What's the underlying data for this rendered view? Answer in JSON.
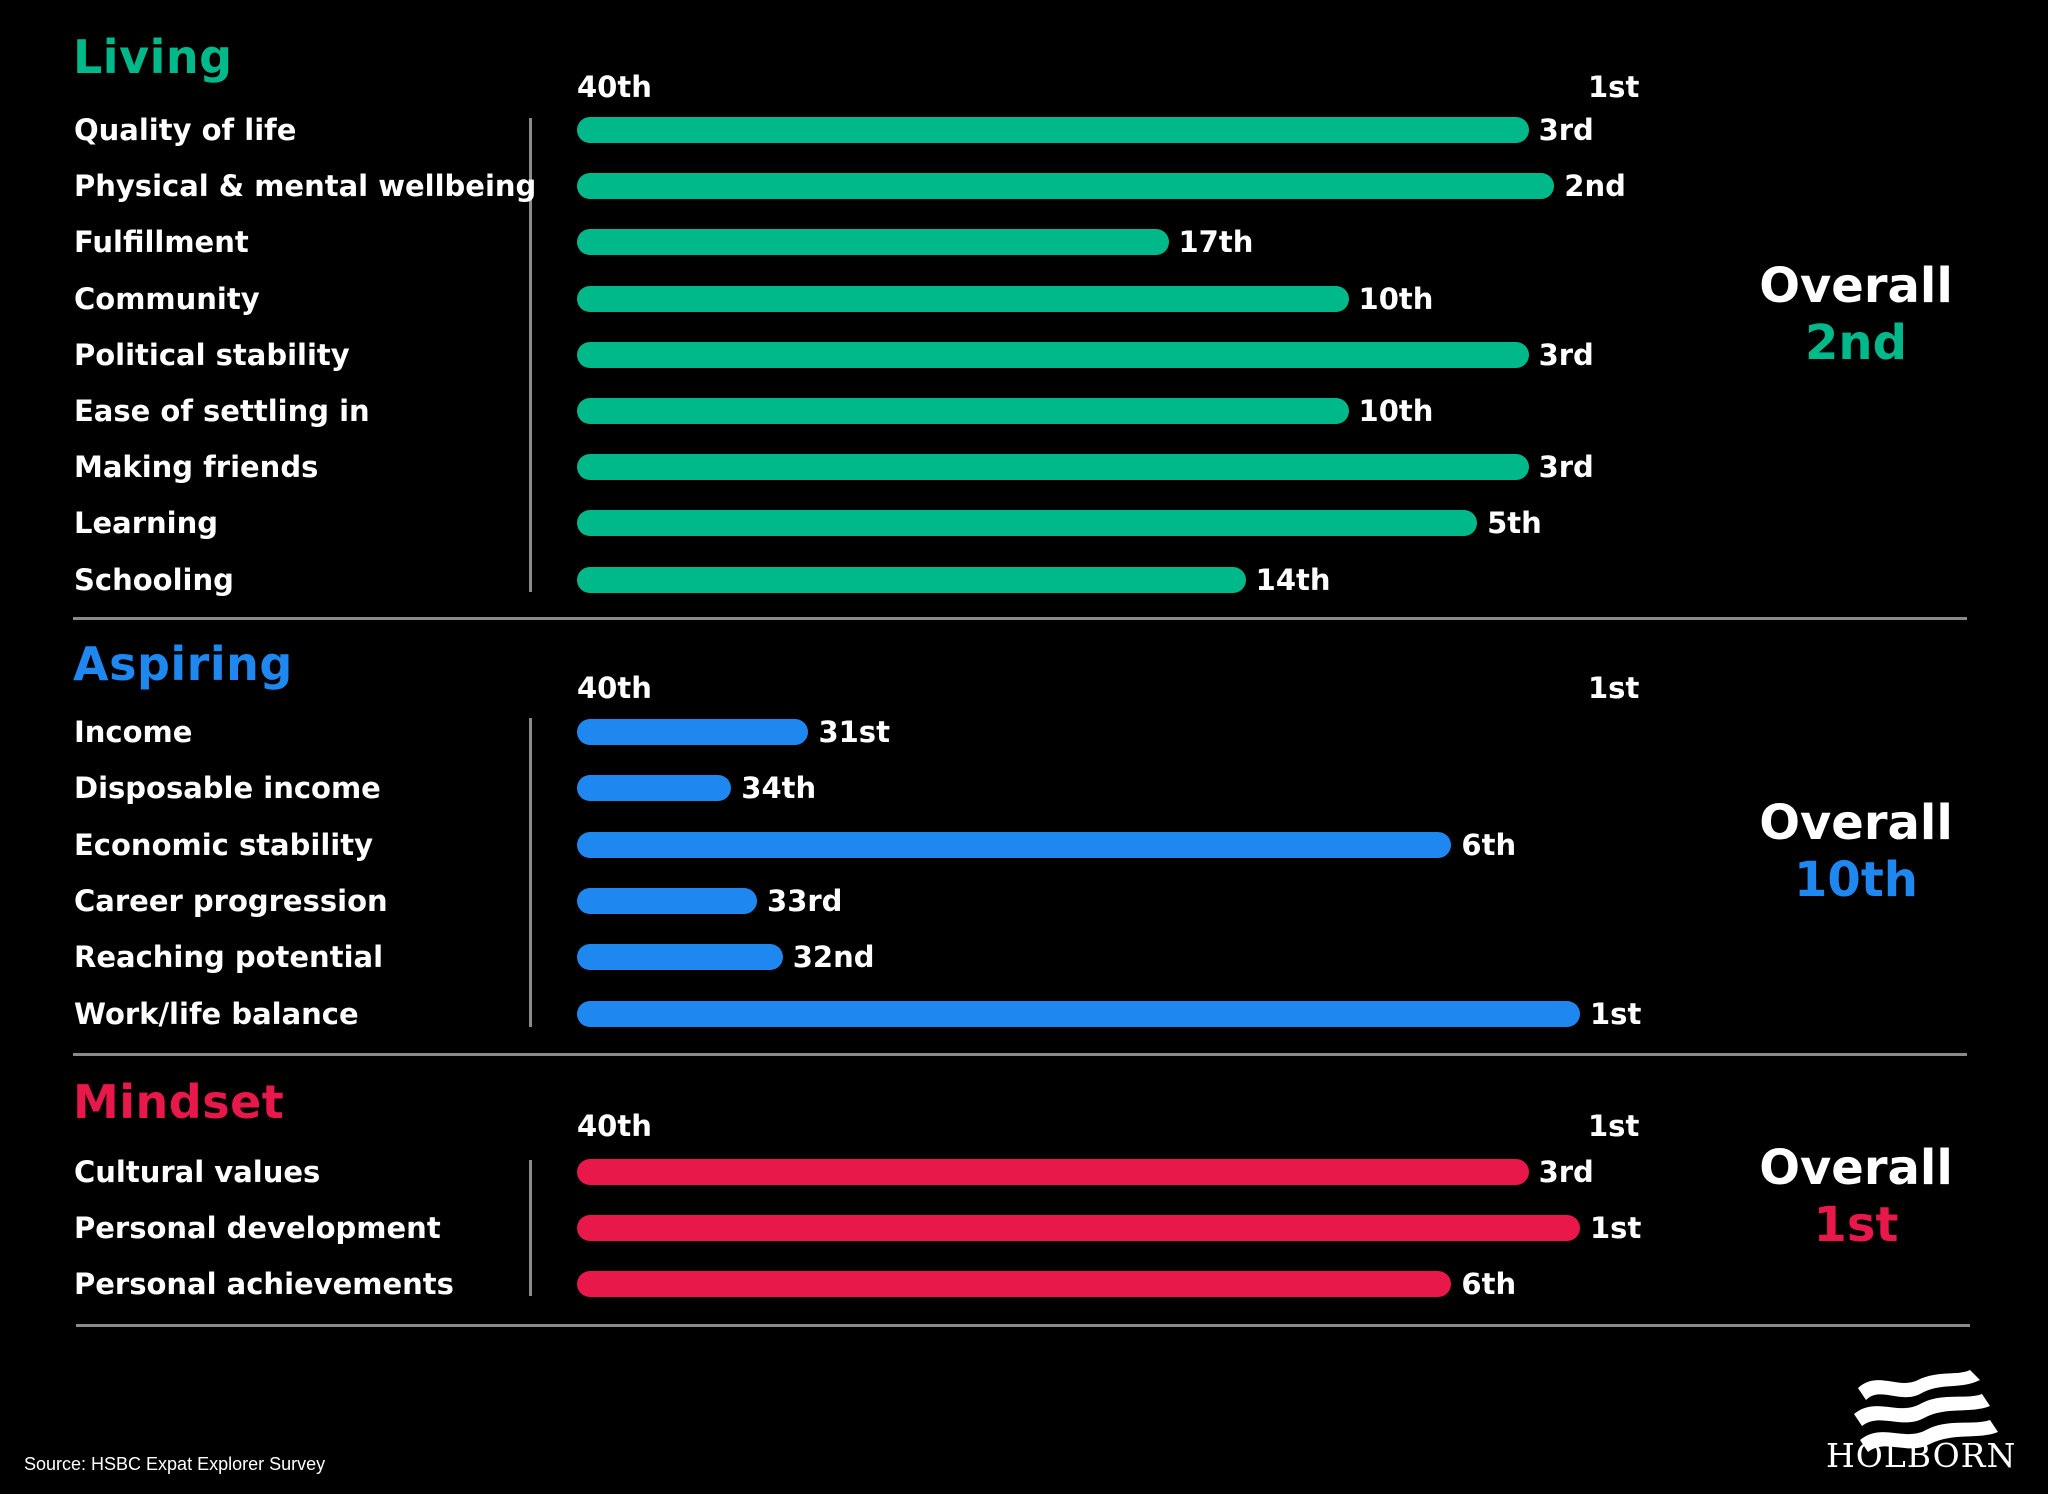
{
  "chart_data": {
    "type": "bar",
    "orientation": "horizontal",
    "axis": {
      "left_label": "40th",
      "right_label": "1st",
      "worst_rank": 40,
      "best_rank": 1
    },
    "sections": [
      {
        "title": "Living",
        "color": "#00b98a",
        "overall_label": "Overall",
        "overall_rank": "2nd",
        "rows": [
          {
            "label": "Quality of life",
            "rank": 3,
            "rank_label": "3rd"
          },
          {
            "label": "Physical & mental wellbeing",
            "rank": 2,
            "rank_label": "2nd"
          },
          {
            "label": "Fulfillment",
            "rank": 17,
            "rank_label": "17th"
          },
          {
            "label": "Community",
            "rank": 10,
            "rank_label": "10th"
          },
          {
            "label": "Political stability",
            "rank": 3,
            "rank_label": "3rd"
          },
          {
            "label": "Ease of settling in",
            "rank": 10,
            "rank_label": "10th"
          },
          {
            "label": "Making friends",
            "rank": 3,
            "rank_label": "3rd"
          },
          {
            "label": "Learning",
            "rank": 5,
            "rank_label": "5th"
          },
          {
            "label": "Schooling",
            "rank": 14,
            "rank_label": "14th"
          }
        ]
      },
      {
        "title": "Aspiring",
        "color": "#1e88f0",
        "overall_label": "Overall",
        "overall_rank": "10th",
        "rows": [
          {
            "label": "Income",
            "rank": 31,
            "rank_label": "31st"
          },
          {
            "label": "Disposable income",
            "rank": 34,
            "rank_label": "34th"
          },
          {
            "label": "Economic stability",
            "rank": 6,
            "rank_label": "6th"
          },
          {
            "label": "Career progression",
            "rank": 33,
            "rank_label": "33rd"
          },
          {
            "label": "Reaching potential",
            "rank": 32,
            "rank_label": "32nd"
          },
          {
            "label": "Work/life balance",
            "rank": 1,
            "rank_label": "1st"
          }
        ]
      },
      {
        "title": "Mindset",
        "color": "#e8184a",
        "overall_label": "Overall",
        "overall_rank": "1st",
        "rows": [
          {
            "label": "Cultural values",
            "rank": 3,
            "rank_label": "3rd"
          },
          {
            "label": "Personal development",
            "rank": 1,
            "rank_label": "1st"
          },
          {
            "label": "Personal achievements",
            "rank": 6,
            "rank_label": "6th"
          }
        ]
      }
    ]
  },
  "footer": {
    "source": "Source: HSBC Expat Explorer Survey",
    "brand": "HOLBORN"
  }
}
